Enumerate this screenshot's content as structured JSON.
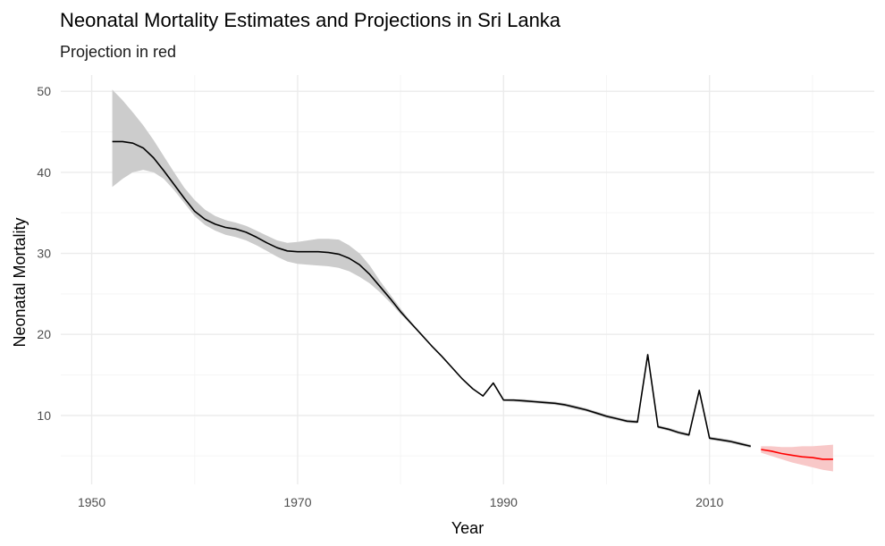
{
  "chart_data": {
    "type": "line",
    "title": "Neonatal Mortality Estimates and Projections in Sri Lanka",
    "subtitle": "Projection in red",
    "xlabel": "Year",
    "ylabel": "Neonatal Mortality",
    "xlim": [
      1947,
      2026
    ],
    "ylim": [
      1.5,
      52
    ],
    "x_ticks": [
      1950,
      1970,
      1990,
      2010
    ],
    "x_minor_ticks": [
      1960,
      1980,
      2000,
      2020
    ],
    "y_ticks": [
      10,
      20,
      30,
      40,
      50
    ],
    "y_minor_ticks": [
      5,
      15,
      25,
      35,
      45
    ],
    "grid": true,
    "colors": {
      "estimate_line": "#000000",
      "estimate_band": "#cccccc",
      "projection_line": "#ff0000",
      "projection_band": "#f8c8c8",
      "grid_major": "#ebebeb",
      "grid_minor": "#f5f5f5"
    },
    "series": [
      {
        "role": "estimate",
        "x": [
          1952,
          1953,
          1954,
          1955,
          1956,
          1957,
          1958,
          1959,
          1960,
          1961,
          1962,
          1963,
          1964,
          1965,
          1966,
          1967,
          1968,
          1969,
          1970,
          1971,
          1972,
          1973,
          1974,
          1975,
          1976,
          1977,
          1978,
          1979,
          1980,
          1981,
          1982,
          1983,
          1984,
          1985,
          1986,
          1987,
          1988,
          1989,
          1990,
          1991,
          1992,
          1993,
          1994,
          1995,
          1996,
          1997,
          1998,
          1999,
          2000,
          2001,
          2002,
          2003,
          2004,
          2005,
          2006,
          2007,
          2008,
          2009,
          2010,
          2011,
          2012,
          2013,
          2014
        ],
        "y": [
          43.8,
          43.8,
          43.6,
          43.0,
          41.8,
          40.2,
          38.5,
          36.8,
          35.2,
          34.2,
          33.6,
          33.2,
          33.0,
          32.6,
          32.0,
          31.3,
          30.7,
          30.3,
          30.2,
          30.2,
          30.2,
          30.1,
          29.9,
          29.4,
          28.6,
          27.4,
          25.9,
          24.4,
          22.8,
          21.4,
          20.0,
          18.6,
          17.3,
          15.9,
          14.5,
          13.3,
          12.4,
          14.0,
          11.9,
          11.9,
          11.8,
          11.7,
          11.6,
          11.5,
          11.3,
          11.0,
          10.7,
          10.3,
          9.9,
          9.6,
          9.3,
          9.2,
          17.5,
          8.6,
          8.3,
          7.9,
          7.6,
          13.1,
          7.2,
          7.0,
          6.8,
          6.5,
          6.2
        ],
        "lower": [
          38.2,
          39.2,
          40.0,
          40.3,
          40.0,
          39.2,
          37.8,
          36.2,
          34.6,
          33.5,
          32.8,
          32.3,
          32.0,
          31.6,
          31.0,
          30.3,
          29.6,
          29.0,
          28.7,
          28.6,
          28.5,
          28.4,
          28.2,
          27.8,
          27.1,
          26.3,
          25.2,
          23.9,
          22.5,
          21.2,
          19.9,
          18.5,
          17.2,
          15.8,
          14.4,
          13.2,
          12.3,
          13.9,
          11.8,
          11.7,
          11.6,
          11.5,
          11.4,
          11.3,
          11.1,
          10.8,
          10.5,
          10.1,
          9.7,
          9.4,
          9.1,
          9.0,
          17.3,
          8.4,
          8.1,
          7.7,
          7.4,
          12.9,
          7.0,
          6.8,
          6.6,
          6.3,
          6.0
        ],
        "upper": [
          50.2,
          48.9,
          47.4,
          45.8,
          44.0,
          42.0,
          40.0,
          38.1,
          36.6,
          35.4,
          34.6,
          34.1,
          33.8,
          33.4,
          32.8,
          32.2,
          31.6,
          31.3,
          31.4,
          31.6,
          31.8,
          31.8,
          31.7,
          31.0,
          30.0,
          28.5,
          26.6,
          24.9,
          23.2,
          21.6,
          20.1,
          18.7,
          17.4,
          16.0,
          14.6,
          13.4,
          12.5,
          14.1,
          12.0,
          12.0,
          12.0,
          11.9,
          11.8,
          11.7,
          11.5,
          11.2,
          10.9,
          10.5,
          10.1,
          9.8,
          9.5,
          9.4,
          17.7,
          8.8,
          8.5,
          8.1,
          7.8,
          13.3,
          7.4,
          7.2,
          7.0,
          6.7,
          6.4
        ]
      },
      {
        "role": "projection",
        "x": [
          2015,
          2016,
          2017,
          2018,
          2019,
          2020,
          2021,
          2022
        ],
        "y": [
          5.8,
          5.6,
          5.3,
          5.1,
          4.9,
          4.8,
          4.6,
          4.6
        ],
        "lower": [
          5.4,
          5.0,
          4.6,
          4.2,
          3.9,
          3.6,
          3.3,
          3.1
        ],
        "upper": [
          6.2,
          6.2,
          6.1,
          6.1,
          6.2,
          6.2,
          6.3,
          6.4
        ]
      }
    ]
  }
}
